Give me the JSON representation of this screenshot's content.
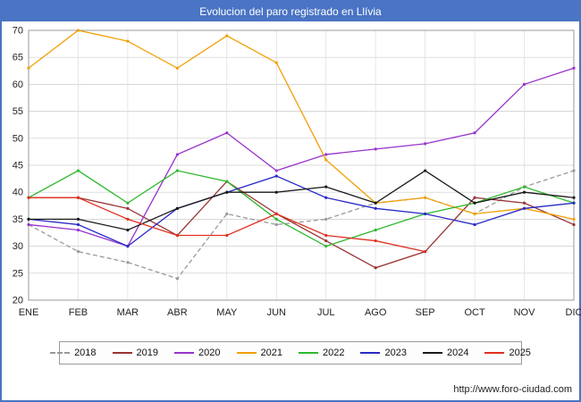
{
  "header": {
    "title": "Evolucion del paro registrado en Llívia"
  },
  "footer": {
    "link": "http://www.foro-ciudad.com"
  },
  "chart_data": {
    "type": "line",
    "title": "Evolucion del paro registrado en Llívia",
    "categories": [
      "ENE",
      "FEB",
      "MAR",
      "ABR",
      "MAY",
      "JUN",
      "JUL",
      "AGO",
      "SEP",
      "OCT",
      "NOV",
      "DIC"
    ],
    "ylim": [
      20,
      70
    ],
    "ytick_step": 5,
    "grid": true,
    "legend_position": "bottom",
    "series": [
      {
        "name": "2018",
        "color": "#999999",
        "dash": "5,3",
        "values": [
          34,
          29,
          27,
          24,
          36,
          34,
          35,
          38,
          39,
          36,
          41,
          44
        ]
      },
      {
        "name": "2019",
        "color": "#993333",
        "dash": null,
        "values": [
          39,
          39,
          37,
          32,
          42,
          36,
          31,
          26,
          29,
          39,
          38,
          34
        ]
      },
      {
        "name": "2020",
        "color": "#9933cc",
        "dash": null,
        "values": [
          34,
          33,
          30,
          47,
          51,
          44,
          47,
          48,
          49,
          51,
          60,
          63
        ]
      },
      {
        "name": "2021",
        "color": "#f2a007",
        "dash": null,
        "values": [
          63,
          70,
          68,
          63,
          69,
          64,
          46,
          38,
          39,
          36,
          37,
          35
        ]
      },
      {
        "name": "2022",
        "color": "#2eb82e",
        "dash": null,
        "values": [
          39,
          44,
          38,
          44,
          42,
          35,
          30,
          33,
          36,
          38,
          41,
          38
        ]
      },
      {
        "name": "2023",
        "color": "#2929c8",
        "dash": null,
        "values": [
          35,
          34,
          30,
          37,
          40,
          43,
          39,
          37,
          36,
          34,
          37,
          38
        ]
      },
      {
        "name": "2024",
        "color": "#1a1a1a",
        "dash": null,
        "values": [
          35,
          35,
          33,
          37,
          40,
          40,
          41,
          38,
          44,
          38,
          40,
          39
        ]
      },
      {
        "name": "2025",
        "color": "#e03020",
        "dash": null,
        "values": [
          39,
          39,
          35,
          32,
          32,
          36,
          32,
          31,
          29,
          null,
          null,
          null
        ]
      }
    ]
  }
}
